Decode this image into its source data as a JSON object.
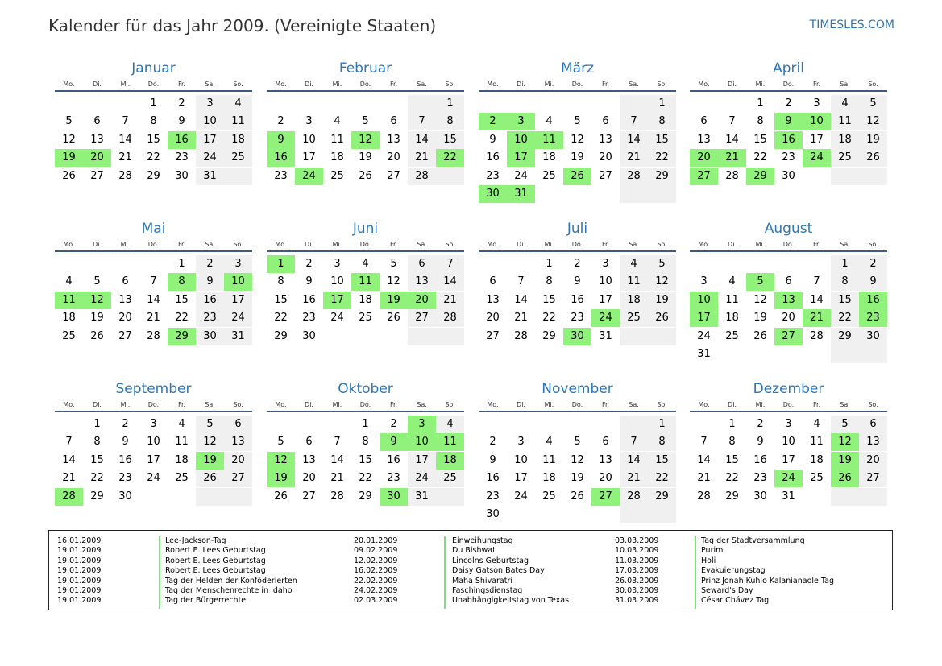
{
  "header": {
    "title": "Kalender für das Jahr 2009. (Vereinigte Staaten)",
    "brand": "TIMESLES.COM"
  },
  "weekdays": [
    "Mo.",
    "Di.",
    "Mi.",
    "Do.",
    "Fr.",
    "Sa.",
    "So."
  ],
  "months": [
    {
      "name": "Januar",
      "days": 31,
      "start": 3,
      "holidays": [
        16,
        19,
        20
      ]
    },
    {
      "name": "Februar",
      "days": 28,
      "start": 6,
      "holidays": [
        9,
        12,
        16,
        22,
        24
      ]
    },
    {
      "name": "März",
      "days": 31,
      "start": 6,
      "holidays": [
        2,
        3,
        10,
        11,
        17,
        26,
        30,
        31
      ]
    },
    {
      "name": "April",
      "days": 30,
      "start": 2,
      "holidays": [
        9,
        10,
        16,
        20,
        21,
        24,
        27,
        29
      ]
    },
    {
      "name": "Mai",
      "days": 31,
      "start": 4,
      "holidays": [
        8,
        10,
        11,
        12,
        29
      ]
    },
    {
      "name": "Juni",
      "days": 30,
      "start": 0,
      "holidays": [
        1,
        11,
        17,
        19,
        20
      ]
    },
    {
      "name": "Juli",
      "days": 31,
      "start": 2,
      "holidays": [
        24,
        30
      ]
    },
    {
      "name": "August",
      "days": 31,
      "start": 5,
      "holidays": [
        5,
        10,
        13,
        16,
        17,
        21,
        23,
        27
      ]
    },
    {
      "name": "September",
      "days": 30,
      "start": 1,
      "holidays": [
        19,
        28
      ]
    },
    {
      "name": "Oktober",
      "days": 31,
      "start": 3,
      "holidays": [
        3,
        9,
        10,
        11,
        12,
        18,
        19,
        30
      ]
    },
    {
      "name": "November",
      "days": 30,
      "start": 6,
      "holidays": [
        27
      ]
    },
    {
      "name": "Dezember",
      "days": 31,
      "start": 1,
      "holidays": [
        12,
        19,
        24,
        26
      ]
    }
  ],
  "legend": [
    [
      {
        "date": "16.01.2009",
        "name": "Lee-Jackson-Tag"
      },
      {
        "date": "19.01.2009",
        "name": "Robert E. Lees Geburtstag"
      },
      {
        "date": "19.01.2009",
        "name": "Robert E. Lees Geburtstag"
      },
      {
        "date": "19.01.2009",
        "name": "Robert E. Lees Geburtstag"
      },
      {
        "date": "19.01.2009",
        "name": "Tag der Helden der Konföderierten"
      },
      {
        "date": "19.01.2009",
        "name": "Tag der Menschenrechte in Idaho"
      },
      {
        "date": "19.01.2009",
        "name": "Tag der Bürgerrechte"
      }
    ],
    [
      {
        "date": "20.01.2009",
        "name": "Einweihungstag"
      },
      {
        "date": "09.02.2009",
        "name": "Du Bishwat"
      },
      {
        "date": "12.02.2009",
        "name": "Lincolns Geburtstag"
      },
      {
        "date": "16.02.2009",
        "name": "Daisy Gatson Bates Day"
      },
      {
        "date": "22.02.2009",
        "name": "Maha Shivaratri"
      },
      {
        "date": "24.02.2009",
        "name": "Faschingsdienstag"
      },
      {
        "date": "02.03.2009",
        "name": "Unabhängigkeitstag von Texas"
      }
    ],
    [
      {
        "date": "03.03.2009",
        "name": "Tag der Stadtversammlung"
      },
      {
        "date": "10.03.2009",
        "name": "Purim"
      },
      {
        "date": "11.03.2009",
        "name": "Holi"
      },
      {
        "date": "17.03.2009",
        "name": "Evakuierungstag"
      },
      {
        "date": "26.03.2009",
        "name": "Prinz Jonah Kuhio Kalanianaole Tag"
      },
      {
        "date": "30.03.2009",
        "name": "Seward's Day"
      },
      {
        "date": "31.03.2009",
        "name": "César Chávez Tag"
      }
    ]
  ]
}
